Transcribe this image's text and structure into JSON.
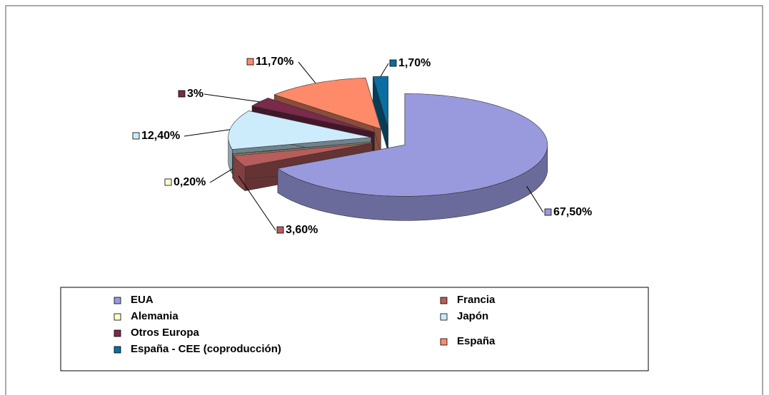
{
  "chart_data": {
    "type": "pie",
    "categories": [
      "EUA",
      "Francia",
      "Alemania",
      "Japón",
      "Otros Europa",
      "España",
      "España - CEE (coproducción)"
    ],
    "values": [
      67.5,
      3.6,
      0.2,
      12.4,
      3,
      11.7,
      1.7
    ],
    "value_labels": [
      "67,50%",
      "3,60%",
      "0,20%",
      "12,40%",
      "3%",
      "11,70%",
      "1,70%"
    ],
    "colors": [
      "#9999dd",
      "#b85c5c",
      "#ffffcc",
      "#ccecfc",
      "#7a2a4a",
      "#ff8a6a",
      "#0a6fa0"
    ],
    "legend": "bottom"
  }
}
